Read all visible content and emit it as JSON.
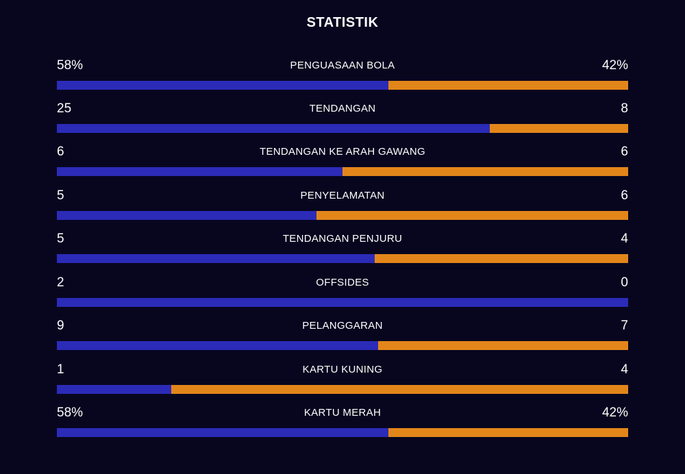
{
  "title": "STATISTIK",
  "colors": {
    "background": "#08061f",
    "home": "#2b2bb8",
    "away": "#e3861a"
  },
  "stats": [
    {
      "label": "PENGUASAAN BOLA",
      "home": "58%",
      "away": "42%",
      "home_share": 0.58
    },
    {
      "label": "TENDANGAN",
      "home": "25",
      "away": "8",
      "home_share": 0.758
    },
    {
      "label": "TENDANGAN KE ARAH GAWANG",
      "home": "6",
      "away": "6",
      "home_share": 0.5
    },
    {
      "label": "PENYELAMATAN",
      "home": "5",
      "away": "6",
      "home_share": 0.455
    },
    {
      "label": "TENDANGAN PENJURU",
      "home": "5",
      "away": "4",
      "home_share": 0.556
    },
    {
      "label": "OFFSIDES",
      "home": "2",
      "away": "0",
      "home_share": 1.0
    },
    {
      "label": "PELANGGARAN",
      "home": "9",
      "away": "7",
      "home_share": 0.5625
    },
    {
      "label": "KARTU KUNING",
      "home": "1",
      "away": "4",
      "home_share": 0.2
    },
    {
      "label": "KARTU MERAH",
      "home": "58%",
      "away": "42%",
      "home_share": 0.58
    }
  ]
}
